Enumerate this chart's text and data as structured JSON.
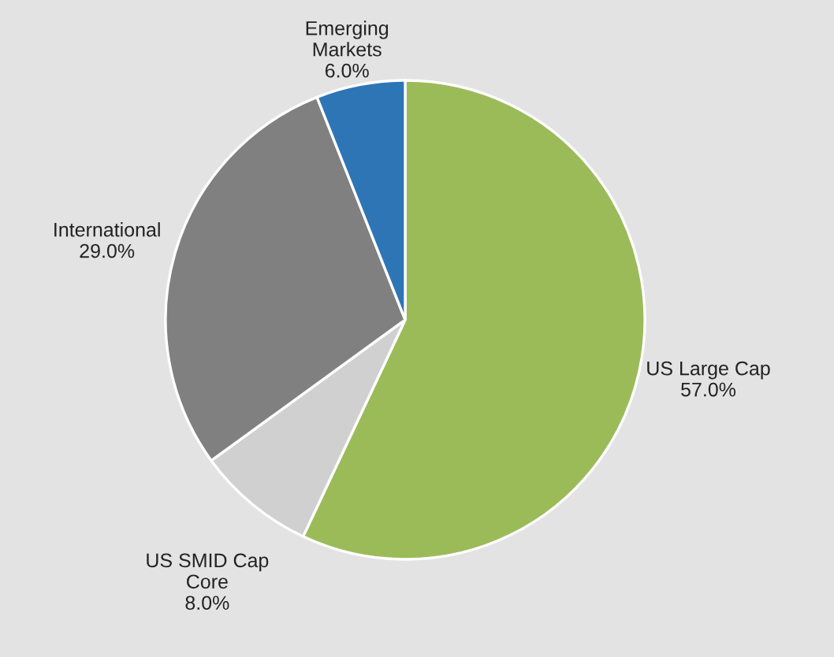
{
  "chart_data": {
    "type": "pie",
    "categories": [
      "US Large Cap",
      "US SMID Cap\nCore",
      "International",
      "Emerging\nMarkets"
    ],
    "values": [
      57.0,
      8.0,
      29.0,
      6.0
    ],
    "colors": [
      "#9bbb59",
      "#d0d0d0",
      "#808080",
      "#2e75b6"
    ],
    "value_labels": [
      "57.0%",
      "8.0%",
      "29.0%",
      "6.0%"
    ],
    "legend": false
  }
}
